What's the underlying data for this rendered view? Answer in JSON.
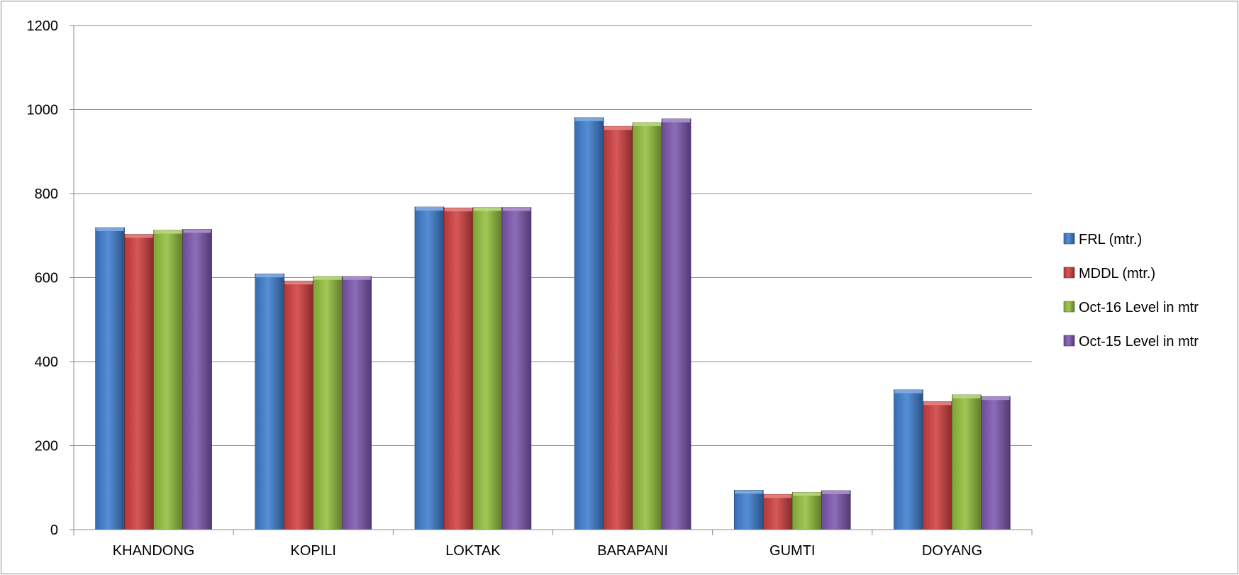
{
  "chart_data": {
    "type": "bar",
    "title": "",
    "xlabel": "",
    "ylabel": "",
    "ylim": [
      0,
      1200
    ],
    "yticks": [
      0,
      200,
      400,
      600,
      800,
      1000,
      1200
    ],
    "grid": true,
    "legend_position": "right",
    "categories": [
      "KHANDONG",
      "KOPILI",
      "LOKTAK",
      "BARAPANI",
      "GUMTI",
      "DOYANG"
    ],
    "series": [
      {
        "name": "FRL  (mtr.)",
        "color": "#3f7fd0",
        "values": [
          719,
          609,
          768,
          981,
          94,
          333
        ]
      },
      {
        "name": "MDDL (mtr.)",
        "color": "#d24040",
        "values": [
          703,
          592,
          766,
          960,
          84,
          305
        ]
      },
      {
        "name": "Oct-16 Level in mtr",
        "color": "#94c13f",
        "values": [
          713,
          603,
          767,
          969,
          89,
          321
        ]
      },
      {
        "name": "Oct-15 Level in mtr",
        "color": "#7e58b0",
        "values": [
          715,
          603,
          767,
          978,
          93,
          317
        ]
      }
    ]
  }
}
